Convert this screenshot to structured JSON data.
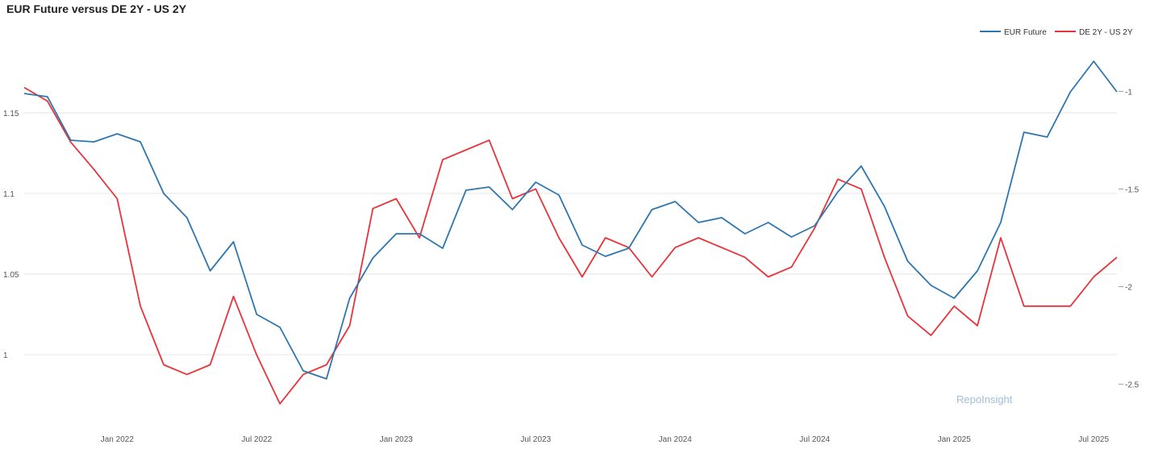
{
  "chart_data": {
    "type": "line",
    "title": "EUR Future versus DE 2Y - US 2Y",
    "watermark": "RepoInsight",
    "legend_position": "top-right",
    "grid": true,
    "x_ticks": [
      "Jan 2022",
      "Jul 2022",
      "Jan 2023",
      "Jul 2023",
      "Jan 2024",
      "Jul 2024",
      "Jan 2025",
      "Jul 2025"
    ],
    "x_range": [
      "2021-09",
      "2025-08"
    ],
    "y_left": {
      "ticks": [
        "1",
        "1.05",
        "1.1",
        "1.15"
      ],
      "range": [
        0.955,
        1.19
      ]
    },
    "y_right": {
      "ticks": [
        "-1",
        "-1.5",
        "-2",
        "-2.5"
      ],
      "range": [
        -2.72,
        -0.78
      ]
    },
    "series": [
      {
        "name": "EUR Future",
        "axis": "left",
        "color": "#2e76b0",
        "x": [
          "2021-09",
          "2021-10",
          "2021-11",
          "2021-12",
          "2022-01",
          "2022-02",
          "2022-03",
          "2022-04",
          "2022-05",
          "2022-06",
          "2022-07",
          "2022-08",
          "2022-09",
          "2022-10",
          "2022-11",
          "2022-12",
          "2023-01",
          "2023-02",
          "2023-03",
          "2023-04",
          "2023-05",
          "2023-06",
          "2023-07",
          "2023-08",
          "2023-09",
          "2023-10",
          "2023-11",
          "2023-12",
          "2024-01",
          "2024-02",
          "2024-03",
          "2024-04",
          "2024-05",
          "2024-06",
          "2024-07",
          "2024-08",
          "2024-09",
          "2024-10",
          "2024-11",
          "2024-12",
          "2025-01",
          "2025-02",
          "2025-03",
          "2025-04",
          "2025-05",
          "2025-06",
          "2025-07",
          "2025-08"
        ],
        "values": [
          1.162,
          1.16,
          1.133,
          1.132,
          1.137,
          1.132,
          1.1,
          1.085,
          1.052,
          1.07,
          1.025,
          1.017,
          0.99,
          0.985,
          1.035,
          1.06,
          1.075,
          1.075,
          1.066,
          1.102,
          1.104,
          1.09,
          1.107,
          1.099,
          1.068,
          1.061,
          1.066,
          1.09,
          1.095,
          1.082,
          1.085,
          1.075,
          1.082,
          1.073,
          1.08,
          1.101,
          1.117,
          1.092,
          1.058,
          1.043,
          1.035,
          1.052,
          1.082,
          1.138,
          1.135,
          1.163,
          1.182,
          1.163
        ]
      },
      {
        "name": "DE 2Y - US 2Y",
        "axis": "right",
        "color": "#e8333a",
        "x": [
          "2021-09",
          "2021-10",
          "2021-11",
          "2021-12",
          "2022-01",
          "2022-02",
          "2022-03",
          "2022-04",
          "2022-05",
          "2022-06",
          "2022-07",
          "2022-08",
          "2022-09",
          "2022-10",
          "2022-11",
          "2022-12",
          "2023-01",
          "2023-02",
          "2023-03",
          "2023-04",
          "2023-05",
          "2023-06",
          "2023-07",
          "2023-08",
          "2023-09",
          "2023-10",
          "2023-11",
          "2023-12",
          "2024-01",
          "2024-02",
          "2024-03",
          "2024-04",
          "2024-05",
          "2024-06",
          "2024-07",
          "2024-08",
          "2024-09",
          "2024-10",
          "2024-11",
          "2024-12",
          "2025-01",
          "2025-02",
          "2025-03",
          "2025-04",
          "2025-05",
          "2025-06",
          "2025-07",
          "2025-08"
        ],
        "values": [
          -0.98,
          -1.05,
          -1.26,
          -1.4,
          -1.55,
          -2.1,
          -2.4,
          -2.45,
          -2.4,
          -2.05,
          -2.35,
          -2.6,
          -2.45,
          -2.4,
          -2.2,
          -1.6,
          -1.55,
          -1.75,
          -1.35,
          -1.3,
          -1.25,
          -1.55,
          -1.5,
          -1.75,
          -1.95,
          -1.75,
          -1.8,
          -1.95,
          -1.8,
          -1.75,
          -1.8,
          -1.85,
          -1.95,
          -1.9,
          -1.7,
          -1.45,
          -1.5,
          -1.85,
          -2.15,
          -2.25,
          -2.1,
          -2.2,
          -1.75,
          -2.1,
          -2.1,
          -2.1,
          -1.95,
          -1.85
        ]
      }
    ]
  }
}
